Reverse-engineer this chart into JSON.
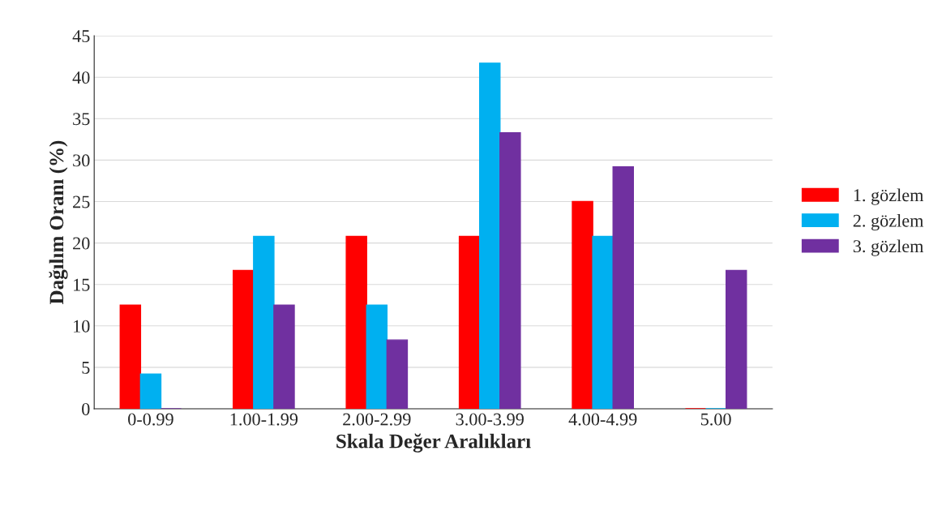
{
  "chart_data": {
    "type": "bar",
    "xlabel": "Skala Değer Aralıkları",
    "ylabel": "Dağılım Oranı (%)",
    "categories": [
      "0-0.99",
      "1.00-1.99",
      "2.00-2.99",
      "3.00-3.99",
      "4.00-4.99",
      "5.00"
    ],
    "series": [
      {
        "name": "1. gözlem",
        "color": "#ff0000",
        "values": [
          12.5,
          16.7,
          20.8,
          20.8,
          25,
          0
        ]
      },
      {
        "name": "2. gözlem",
        "color": "#00b0f0",
        "values": [
          4.2,
          20.8,
          12.5,
          41.7,
          20.8,
          0
        ]
      },
      {
        "name": "3. gözlem",
        "color": "#7030a0",
        "values": [
          0,
          12.5,
          8.3,
          33.3,
          29.2,
          16.7
        ]
      }
    ],
    "ylim": [
      0,
      45
    ],
    "yticks": [
      0,
      5,
      10,
      15,
      20,
      25,
      30,
      35,
      40,
      45
    ],
    "grid": "y",
    "legend": "right"
  }
}
